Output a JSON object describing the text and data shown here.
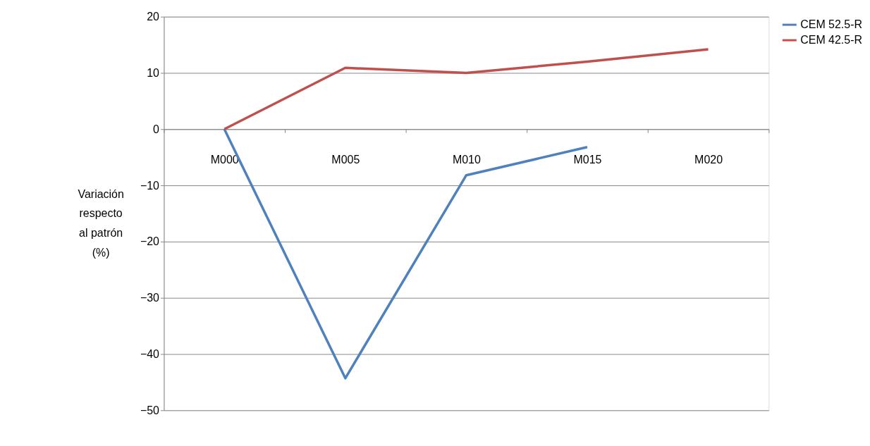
{
  "chart_data": {
    "type": "line",
    "ylabel": "Variación respecto al patrón (%)",
    "categories": [
      "M000",
      "M005",
      "M010",
      "M015",
      "M020"
    ],
    "series": [
      {
        "name": "CEM 52.5-R",
        "color": "#4f81bd",
        "values": [
          0,
          -44.3,
          -8.2,
          -3.2,
          null
        ]
      },
      {
        "name": "CEM 42.5-R",
        "color": "#c0504d",
        "values": [
          0,
          10.9,
          10.0,
          12.0,
          14.2
        ]
      }
    ],
    "ylim": [
      -50,
      20
    ],
    "yticks": [
      -50,
      -40,
      -30,
      -20,
      -10,
      0,
      10,
      20
    ],
    "grid": "y",
    "legend": "right",
    "marker": "none",
    "line_style": "solid"
  }
}
